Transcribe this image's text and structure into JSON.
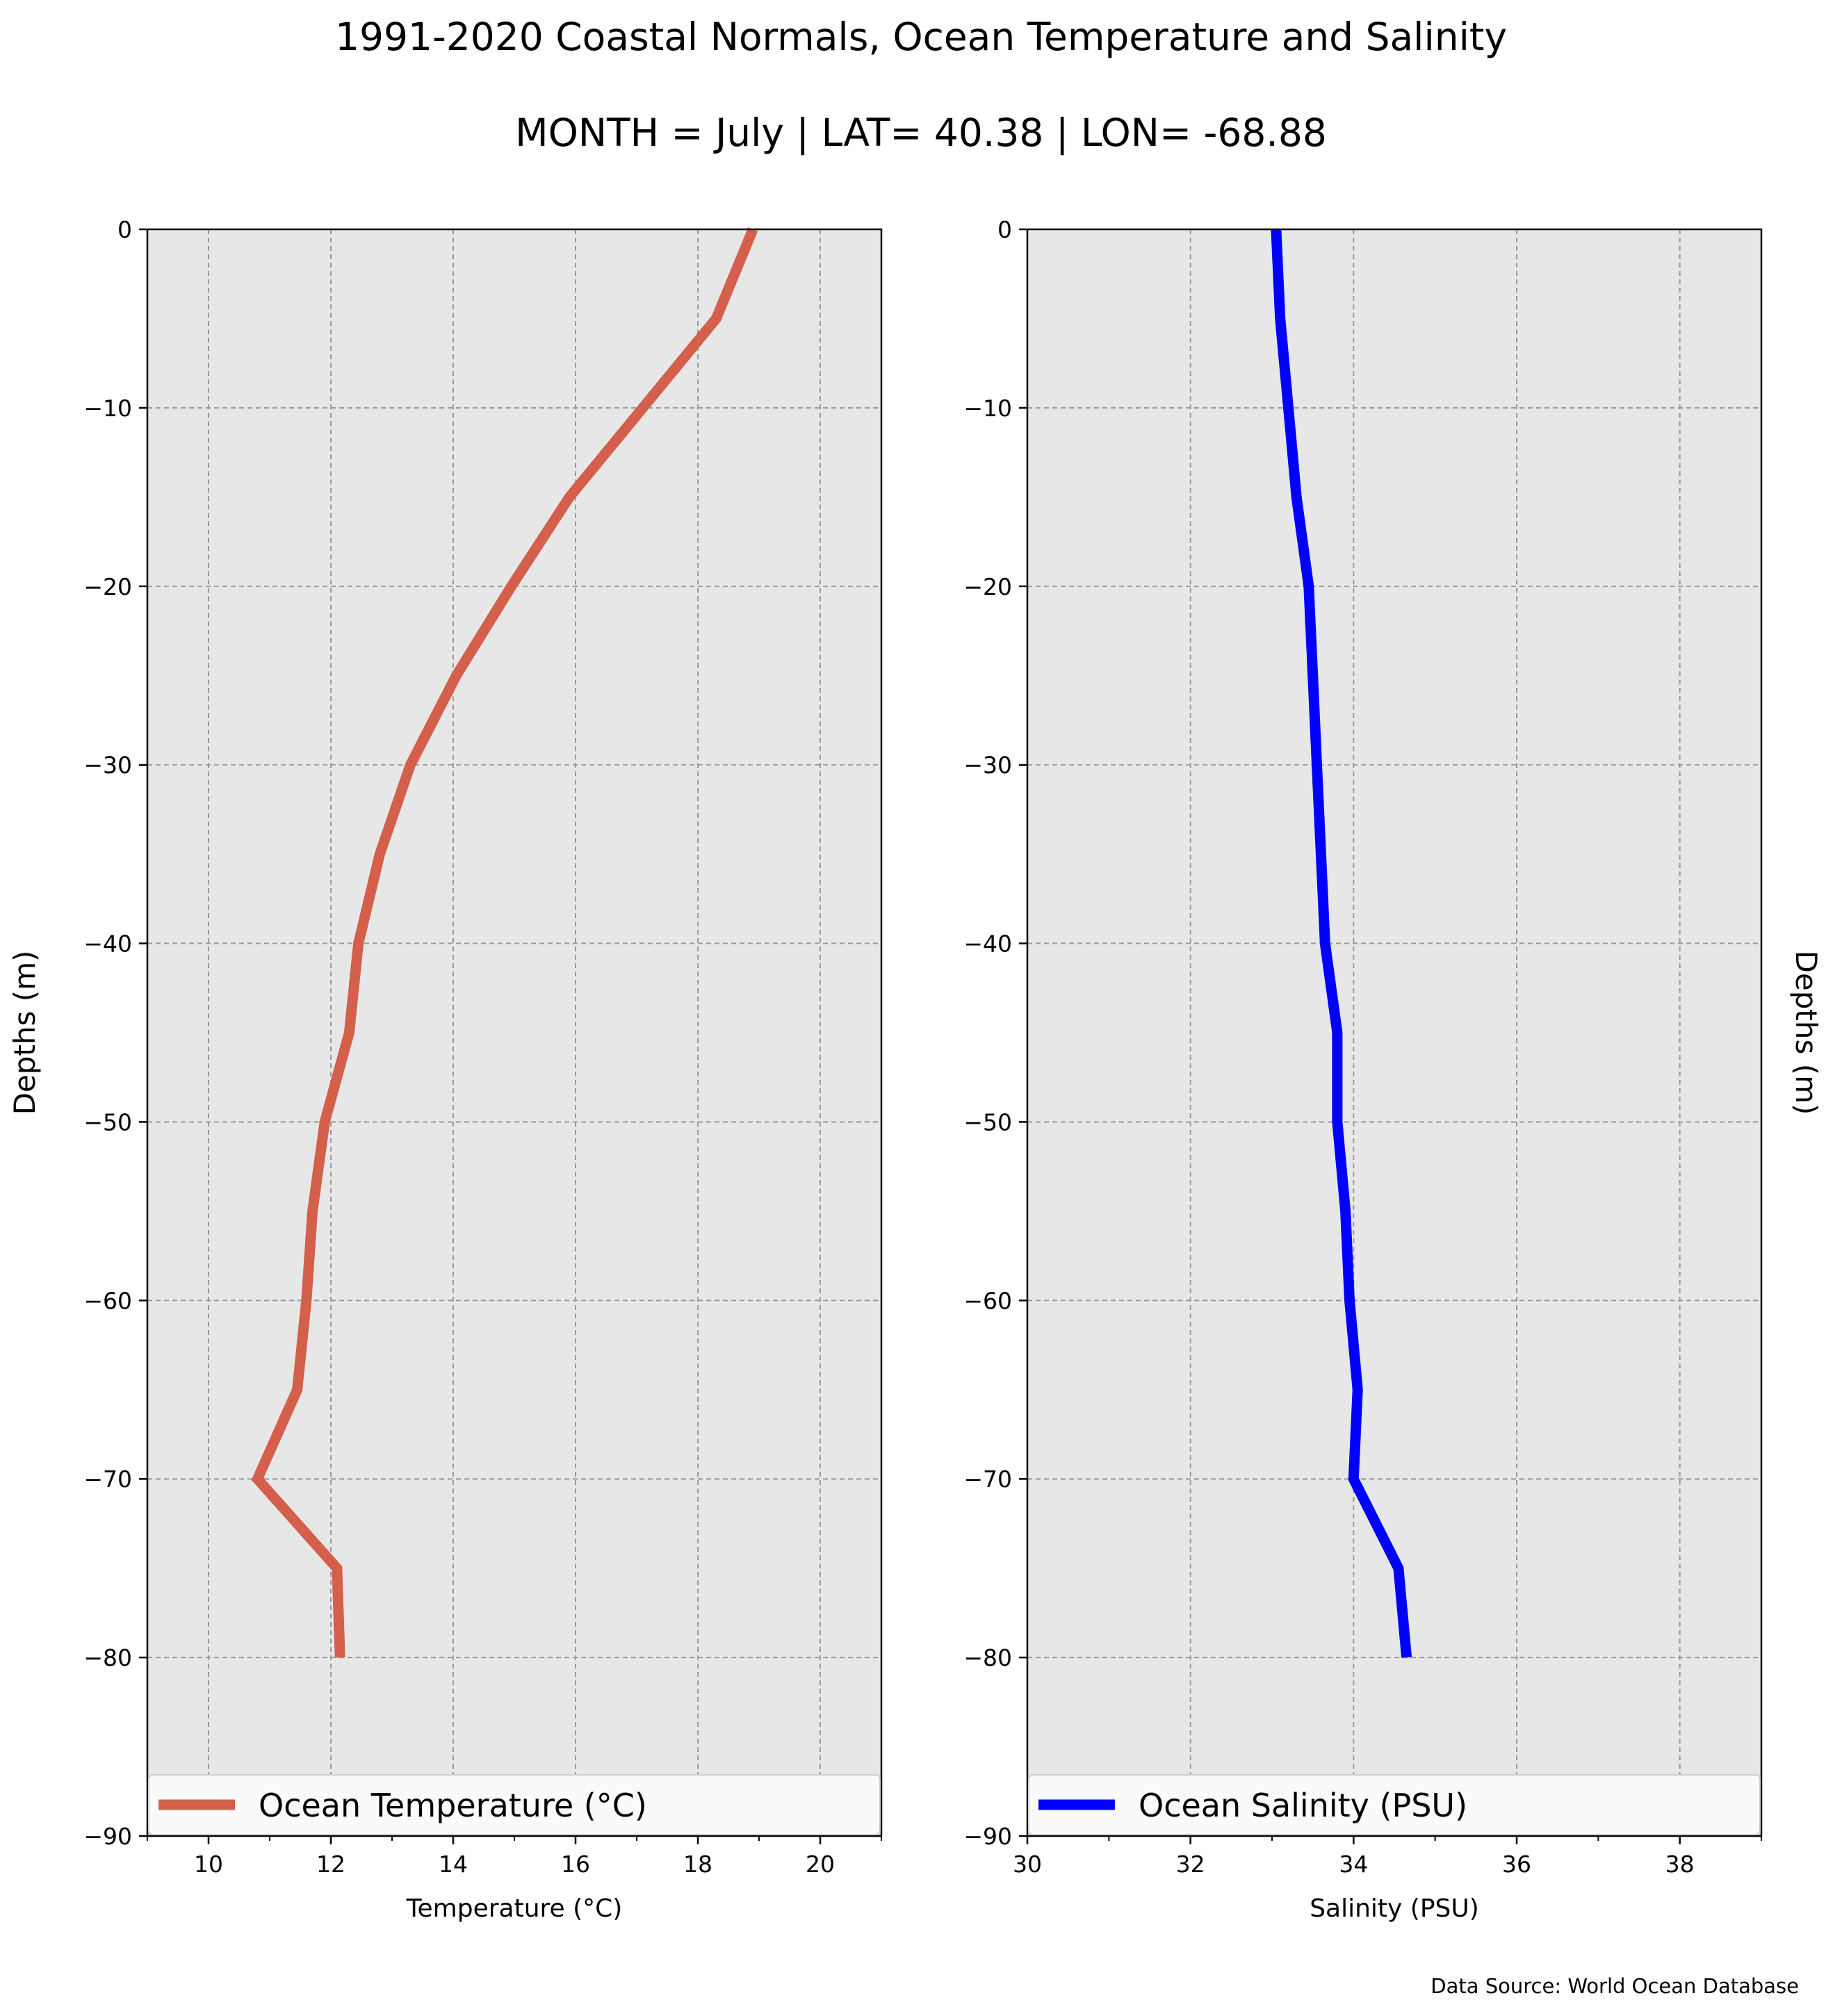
{
  "title": "1991-2020 Coastal Normals, Ocean Temperature and Salinity",
  "subtitle": "MONTH = July | LAT= 40.38 | LON= -68.88",
  "source_note": "Data Source: World Ocean Database",
  "colors": {
    "temperature": "#d45f4a",
    "salinity": "#0000ff",
    "plot_bg": "#e8e7e8",
    "grid": "#9a9a9a"
  },
  "chart_data": [
    {
      "type": "line",
      "xlabel": "Temperature ($^\\circ$C)",
      "xlabel_display": "Temperature (°C)",
      "ylabel": "Depths (m)",
      "xlim": [
        9,
        21
      ],
      "ylim": [
        -90,
        0
      ],
      "xticks": [
        10,
        12,
        14,
        16,
        18,
        20
      ],
      "yticks": [
        0,
        -10,
        -20,
        -30,
        -40,
        -50,
        -60,
        -70,
        -80,
        -90
      ],
      "ytick_labels": [
        "0",
        "−10",
        "−20",
        "−30",
        "−40",
        "−50",
        "−60",
        "−70",
        "−80",
        "−90"
      ],
      "grid": true,
      "legend_placement": "bottom",
      "series": [
        {
          "name": "Ocean Temperature (°C)",
          "x": [
            18.9,
            18.3,
            17.1,
            15.9,
            14.95,
            14.05,
            13.3,
            12.8,
            12.45,
            12.3,
            11.9,
            11.7,
            11.6,
            11.45,
            10.8,
            12.1,
            12.15
          ],
          "y": [
            0,
            -5,
            -10,
            -15,
            -20,
            -25,
            -30,
            -35,
            -40,
            -45,
            -50,
            -55,
            -60,
            -65,
            -70,
            -75,
            -80
          ]
        }
      ]
    },
    {
      "type": "line",
      "xlabel": "Salinity (PSU)",
      "ylabel": "Depths (m)",
      "xlim": [
        30,
        39
      ],
      "ylim": [
        -90,
        0
      ],
      "xticks": [
        30,
        32,
        34,
        36,
        38
      ],
      "yticks": [
        0,
        -10,
        -20,
        -30,
        -40,
        -50,
        -60,
        -70,
        -80,
        -90
      ],
      "ytick_labels": [
        "0",
        "−10",
        "−20",
        "−30",
        "−40",
        "−50",
        "−60",
        "−70",
        "−80",
        "−90"
      ],
      "grid": true,
      "legend_placement": "bottom",
      "series": [
        {
          "name": "Ocean Salinity (PSU)",
          "x": [
            33.05,
            33.1,
            33.2,
            33.3,
            33.45,
            33.5,
            33.55,
            33.6,
            33.65,
            33.8,
            33.8,
            33.9,
            33.95,
            34.05,
            34.0,
            34.55,
            34.65
          ],
          "y": [
            0,
            -5,
            -10,
            -15,
            -20,
            -25,
            -30,
            -35,
            -40,
            -45,
            -50,
            -55,
            -60,
            -65,
            -70,
            -75,
            -80
          ]
        }
      ]
    }
  ]
}
